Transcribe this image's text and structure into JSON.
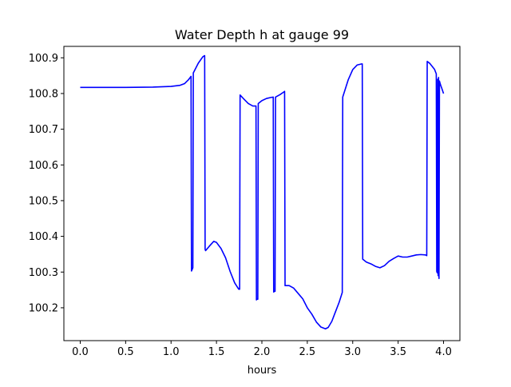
{
  "chart_data": {
    "type": "line",
    "title": "Water Depth h at gauge 99",
    "xlabel": "hours",
    "ylabel": "",
    "xlim": [
      -0.18,
      4.18
    ],
    "ylim": [
      100.108,
      100.932
    ],
    "xticks": [
      0.0,
      0.5,
      1.0,
      1.5,
      2.0,
      2.5,
      3.0,
      3.5,
      4.0
    ],
    "xtick_labels": [
      "0.0",
      "0.5",
      "1.0",
      "1.5",
      "2.0",
      "2.5",
      "3.0",
      "3.5",
      "4.0"
    ],
    "yticks": [
      100.2,
      100.3,
      100.4,
      100.5,
      100.6,
      100.7,
      100.8,
      100.9
    ],
    "ytick_labels": [
      "100.2",
      "100.3",
      "100.4",
      "100.5",
      "100.6",
      "100.7",
      "100.8",
      "100.9"
    ],
    "grid": false,
    "legend": null,
    "series": [
      {
        "color": "#0000ff",
        "x": [
          0.0,
          0.5,
          0.8,
          1.0,
          1.1,
          1.15,
          1.19,
          1.22,
          1.225,
          1.24,
          1.245,
          1.25,
          1.3,
          1.35,
          1.37,
          1.375,
          1.38,
          1.42,
          1.47,
          1.5,
          1.55,
          1.6,
          1.65,
          1.7,
          1.745,
          1.755,
          1.76,
          1.8,
          1.85,
          1.9,
          1.935,
          1.94,
          1.945,
          1.955,
          1.96,
          2.0,
          2.05,
          2.1,
          2.125,
          2.13,
          2.135,
          2.145,
          2.15,
          2.2,
          2.245,
          2.25,
          2.255,
          2.3,
          2.35,
          2.4,
          2.45,
          2.5,
          2.55,
          2.6,
          2.65,
          2.7,
          2.73,
          2.77,
          2.8,
          2.85,
          2.885,
          2.89,
          2.95,
          3.0,
          3.05,
          3.1,
          3.105,
          3.11,
          3.15,
          3.2,
          3.25,
          3.3,
          3.35,
          3.4,
          3.45,
          3.5,
          3.55,
          3.6,
          3.65,
          3.7,
          3.75,
          3.8,
          3.815,
          3.82,
          3.85,
          3.9,
          3.92,
          3.925,
          3.93,
          3.935,
          3.94,
          3.945,
          3.95,
          3.955,
          3.96,
          3.965,
          3.97,
          3.98,
          4.0
        ],
        "y": [
          100.817,
          100.817,
          100.818,
          100.82,
          100.823,
          100.828,
          100.838,
          100.848,
          100.303,
          100.312,
          100.858,
          100.86,
          100.885,
          100.903,
          100.906,
          100.364,
          100.36,
          100.372,
          100.386,
          100.383,
          100.366,
          100.34,
          100.302,
          100.27,
          100.252,
          100.252,
          100.796,
          100.785,
          100.772,
          100.765,
          100.765,
          100.222,
          100.224,
          100.224,
          100.772,
          100.78,
          100.786,
          100.789,
          100.79,
          100.244,
          100.246,
          100.246,
          100.79,
          100.797,
          100.805,
          100.806,
          100.262,
          100.262,
          100.255,
          100.24,
          100.225,
          100.2,
          100.182,
          100.16,
          100.146,
          100.141,
          100.145,
          100.162,
          100.182,
          100.215,
          100.243,
          100.79,
          100.838,
          100.867,
          100.88,
          100.883,
          100.883,
          100.336,
          100.328,
          100.323,
          100.316,
          100.312,
          100.318,
          100.33,
          100.338,
          100.345,
          100.342,
          100.342,
          100.345,
          100.348,
          100.349,
          100.348,
          100.346,
          100.89,
          100.884,
          100.868,
          100.855,
          100.302,
          100.298,
          100.84,
          100.29,
          100.845,
          100.282,
          100.835,
          100.83,
          100.826,
          100.822,
          100.815,
          100.8
        ]
      }
    ]
  }
}
